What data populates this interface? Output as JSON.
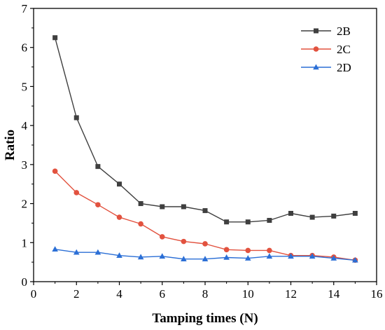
{
  "chart_data": {
    "type": "line",
    "title": "",
    "xlabel": "Tamping times (N)",
    "ylabel": "Ratio",
    "xlim": [
      0,
      16
    ],
    "ylim": [
      0,
      7
    ],
    "x_ticks": [
      0,
      2,
      4,
      6,
      8,
      10,
      12,
      14,
      16
    ],
    "y_ticks": [
      0,
      1,
      2,
      3,
      4,
      5,
      6,
      7
    ],
    "grid": false,
    "legend_position": "top-right",
    "x": [
      1,
      2,
      3,
      4,
      5,
      6,
      7,
      8,
      9,
      10,
      11,
      12,
      13,
      14,
      15
    ],
    "series": [
      {
        "name": "2B",
        "color": "#3f3f3f",
        "marker": "square",
        "values": [
          6.25,
          4.2,
          2.95,
          2.5,
          2.0,
          1.92,
          1.92,
          1.82,
          1.53,
          1.53,
          1.57,
          1.75,
          1.65,
          1.68,
          1.75
        ]
      },
      {
        "name": "2C",
        "color": "#e2523f",
        "marker": "circle",
        "values": [
          2.83,
          2.28,
          1.97,
          1.65,
          1.48,
          1.15,
          1.03,
          0.97,
          0.82,
          0.8,
          0.8,
          0.67,
          0.67,
          0.63,
          0.55
        ]
      },
      {
        "name": "2D",
        "color": "#2b6fd6",
        "marker": "triangle",
        "values": [
          0.83,
          0.75,
          0.75,
          0.67,
          0.63,
          0.65,
          0.58,
          0.58,
          0.62,
          0.6,
          0.65,
          0.65,
          0.65,
          0.6,
          0.55
        ]
      }
    ]
  }
}
